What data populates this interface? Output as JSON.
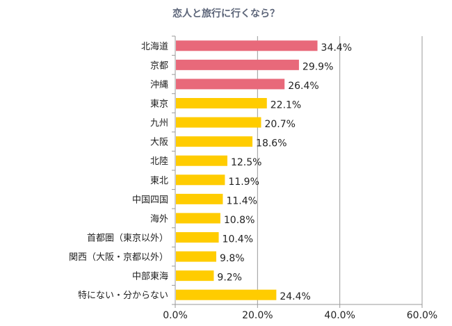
{
  "chart_data": {
    "type": "bar",
    "orientation": "horizontal",
    "title": "恋人と旅行に行くなら？",
    "categories": [
      "北海道",
      "京都",
      "沖縄",
      "東京",
      "九州",
      "大阪",
      "北陸",
      "東北",
      "中国四国",
      "海外",
      "首都圏（東京以外）",
      "関西（大阪・京都以外）",
      "中部東海",
      "特にない・分からない"
    ],
    "values": [
      34.4,
      29.9,
      26.4,
      22.1,
      20.7,
      18.6,
      12.5,
      11.9,
      11.4,
      10.8,
      10.4,
      9.8,
      9.2,
      24.4
    ],
    "value_labels": [
      "34.4%",
      "29.9%",
      "26.4%",
      "22.1%",
      "20.7%",
      "18.6%",
      "12.5%",
      "11.9%",
      "11.4%",
      "10.8%",
      "10.4%",
      "9.8%",
      "9.2%",
      "24.4%"
    ],
    "bar_colors": [
      "#E8697A",
      "#E8697A",
      "#E8697A",
      "#FFCC00",
      "#FFCC00",
      "#FFCC00",
      "#FFCC00",
      "#FFCC00",
      "#FFCC00",
      "#FFCC00",
      "#FFCC00",
      "#FFCC00",
      "#FFCC00",
      "#FFCC00"
    ],
    "xlim": [
      0,
      60
    ],
    "xticks": [
      0,
      20,
      40,
      60
    ],
    "xtick_labels": [
      "0.0%",
      "20.0%",
      "40.0%",
      "60.0%"
    ],
    "grid": "vertical",
    "legend": "none",
    "xlabel": "",
    "ylabel": ""
  }
}
